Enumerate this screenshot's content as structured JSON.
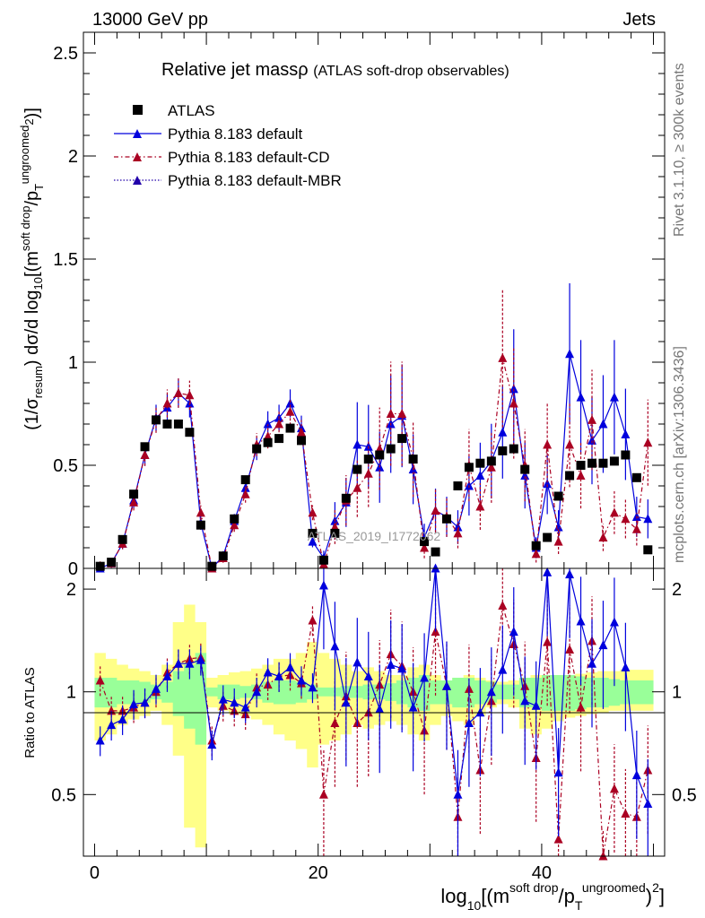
{
  "header": {
    "left": "13000 GeV pp",
    "right": "Jets"
  },
  "side": {
    "rivet_prefix": "Rivet 3.1.10, ",
    "rivet_suffix": "≥ 300k events",
    "mcplots": "mcplots.cern.ch [arXiv:1306.3436]"
  },
  "watermark": "ATLAS_2019_I1772062",
  "legend": {
    "title_main": "Relative jet massρ",
    "title_sub": "(ATLAS soft-drop observables)",
    "entries": [
      {
        "label": "ATLAS",
        "color": "#000000"
      },
      {
        "label": "Pythia 8.183 default",
        "color": "#0000dd"
      },
      {
        "label": "Pythia 8.183 default-CD",
        "color": "#aa0022"
      },
      {
        "label": "Pythia 8.183 default-MBR",
        "color": "#2200aa"
      }
    ]
  },
  "axes": {
    "ylabel_top": "(1/σresum) dσ/d log10[(msoft drop/pTungroomed)2]",
    "ylabel_bottom": "Ratio to ATLAS",
    "xlabel": "log10[(msoft drop/pTungroomed)2]"
  },
  "chart_data": {
    "type": "scatter",
    "xlim": [
      -1,
      51
    ],
    "ylim_top": [
      0,
      2.6
    ],
    "ylim_ratio": [
      0.33,
      2.3
    ],
    "x_ticks": [
      0,
      20,
      40
    ],
    "y_ticks_top": [
      "0",
      "0.5",
      "1",
      "1.5",
      "2",
      "2.5"
    ],
    "y_ticks_top_values": [
      0,
      0.5,
      1,
      1.5,
      2,
      2.5
    ],
    "y_ticks_ratio": [
      "0.5",
      "1",
      "2"
    ],
    "y_ticks_ratio_values": [
      0.5,
      1,
      2
    ],
    "x": [
      0.5,
      1.5,
      2.5,
      3.5,
      4.5,
      5.5,
      6.5,
      7.5,
      8.5,
      9.5,
      10.5,
      11.5,
      12.5,
      13.5,
      14.5,
      15.5,
      16.5,
      17.5,
      18.5,
      19.5,
      20.5,
      21.5,
      22.5,
      23.5,
      24.5,
      25.5,
      26.5,
      27.5,
      28.5,
      29.5,
      30.5,
      31.5,
      32.5,
      33.5,
      34.5,
      35.5,
      36.5,
      37.5,
      38.5,
      39.5,
      40.5,
      41.5,
      42.5,
      43.5,
      44.5,
      45.5,
      46.5,
      47.5,
      48.5,
      49.5
    ],
    "series": [
      {
        "name": "ATLAS",
        "values": [
          0.01,
          0.03,
          0.14,
          0.36,
          0.59,
          0.72,
          0.7,
          0.7,
          0.66,
          0.21,
          0.01,
          0.06,
          0.24,
          0.43,
          0.58,
          0.61,
          0.63,
          0.68,
          0.62,
          0.17,
          0.04,
          0.17,
          0.34,
          0.48,
          0.53,
          0.55,
          0.58,
          0.63,
          0.53,
          0.13,
          0.08,
          0.24,
          0.4,
          0.49,
          0.51,
          0.52,
          0.57,
          0.58,
          0.48,
          0.11,
          0.15,
          0.35,
          0.45,
          0.5,
          0.51,
          0.51,
          0.52,
          0.55,
          0.44,
          0.09
        ]
      },
      {
        "name": "Pythia 8.183 default",
        "values": [
          0.0,
          0.025,
          0.12,
          0.33,
          0.55,
          0.73,
          0.78,
          0.85,
          0.8,
          0.22,
          0.0,
          0.06,
          0.23,
          0.39,
          0.58,
          0.7,
          0.73,
          0.8,
          0.68,
          0.13,
          0.05,
          0.23,
          0.32,
          0.6,
          0.59,
          0.49,
          0.7,
          0.74,
          0.48,
          0.15,
          0.28,
          0.25,
          0.2,
          0.4,
          0.45,
          0.52,
          0.66,
          0.87,
          0.45,
          0.1,
          0.41,
          0.2,
          1.04,
          0.83,
          0.62,
          0.7,
          0.83,
          0.65,
          0.25,
          0.24
        ]
      },
      {
        "name": "Pythia 8.183 default-CD",
        "values": [
          0.012,
          0.025,
          0.12,
          0.32,
          0.55,
          0.72,
          0.8,
          0.85,
          0.84,
          0.27,
          0.0,
          0.05,
          0.21,
          0.36,
          0.6,
          0.64,
          0.7,
          0.76,
          0.66,
          0.27,
          0.02,
          0.2,
          0.33,
          0.39,
          0.46,
          0.58,
          0.75,
          0.75,
          0.53,
          0.1,
          0.28,
          0.25,
          0.17,
          0.5,
          0.3,
          0.49,
          1.02,
          0.8,
          0.5,
          0.07,
          0.6,
          0.13,
          0.6,
          0.45,
          0.72,
          0.15,
          0.27,
          0.24,
          0.19,
          0.61
        ]
      }
    ],
    "ratio": {
      "default": [
        0.72,
        0.8,
        0.83,
        0.92,
        0.93,
        1.02,
        1.11,
        1.21,
        1.21,
        1.24,
        0.7,
        0.95,
        0.93,
        0.9,
        1.0,
        1.14,
        1.11,
        1.18,
        1.08,
        1.03,
        2.05,
        1.36,
        0.93,
        1.22,
        1.11,
        0.89,
        1.2,
        1.17,
        0.9,
        1.1,
        2.31,
        1.04,
        0.5,
        0.81,
        0.87,
        1.0,
        1.16,
        1.5,
        0.94,
        0.91,
        2.24,
        0.58,
        2.21,
        1.61,
        1.21,
        1.37,
        1.6,
        1.18,
        0.57,
        0.47
      ],
      "default_cd": [
        1.08,
        0.88,
        0.88,
        0.9,
        0.93,
        1.0,
        1.14,
        1.21,
        1.25,
        1.26,
        0.72,
        0.91,
        0.88,
        0.86,
        1.03,
        1.05,
        1.11,
        1.12,
        1.06,
        1.62,
        0.5,
        0.81,
        0.97,
        0.81,
        0.87,
        1.05,
        1.29,
        1.19,
        1.0,
        0.77,
        1.5,
        1.04,
        0.43,
        1.02,
        0.59,
        0.94,
        1.79,
        1.38,
        1.04,
        0.64,
        1.4,
        0.37,
        1.33,
        0.9,
        1.41,
        0.29,
        0.52,
        0.44,
        0.43,
        0.59
      ]
    },
    "bands": {
      "inner_lo": [
        0.9,
        0.9,
        0.92,
        0.92,
        0.93,
        0.95,
        0.93,
        0.85,
        0.78,
        0.7,
        0.97,
        0.95,
        0.95,
        0.96,
        0.95,
        0.93,
        0.92,
        0.92,
        0.93,
        0.95,
        0.97,
        0.97,
        0.96,
        0.96,
        0.95,
        0.95,
        0.94,
        0.92,
        0.9,
        0.88,
        0.92,
        0.92,
        0.9,
        0.9,
        0.92,
        0.93,
        0.95,
        0.95,
        0.9,
        0.9,
        0.88,
        0.88,
        0.88,
        0.89,
        0.9,
        0.9,
        0.91,
        0.92,
        0.92,
        0.92
      ],
      "inner_hi": [
        1.1,
        1.1,
        1.08,
        1.08,
        1.07,
        1.05,
        1.07,
        1.15,
        1.2,
        1.3,
        1.03,
        1.05,
        1.05,
        1.04,
        1.05,
        1.07,
        1.08,
        1.08,
        1.07,
        1.05,
        1.03,
        1.03,
        1.04,
        1.04,
        1.05,
        1.05,
        1.06,
        1.08,
        1.1,
        1.12,
        1.08,
        1.08,
        1.1,
        1.1,
        1.08,
        1.07,
        1.05,
        1.05,
        1.1,
        1.1,
        1.12,
        1.12,
        1.12,
        1.11,
        1.1,
        1.1,
        1.09,
        1.08,
        1.08,
        1.08
      ],
      "outer_lo": [
        0.72,
        0.75,
        0.8,
        0.83,
        0.85,
        0.88,
        0.8,
        0.65,
        0.4,
        0.35,
        0.9,
        0.88,
        0.86,
        0.85,
        0.83,
        0.8,
        0.75,
        0.72,
        0.68,
        0.6,
        0.7,
        0.72,
        0.75,
        0.8,
        0.78,
        0.8,
        0.82,
        0.8,
        0.75,
        0.72,
        0.8,
        0.85,
        0.82,
        0.8,
        0.85,
        0.9,
        0.92,
        0.9,
        0.78,
        0.75,
        0.78,
        0.82,
        0.84,
        0.85,
        0.86,
        0.87,
        0.88,
        0.88,
        0.88,
        0.88
      ],
      "outer_hi": [
        1.3,
        1.25,
        1.2,
        1.17,
        1.15,
        1.12,
        1.2,
        1.6,
        1.8,
        1.6,
        1.1,
        1.12,
        1.14,
        1.15,
        1.17,
        1.2,
        1.25,
        1.25,
        1.3,
        1.4,
        1.3,
        1.25,
        1.2,
        1.15,
        1.18,
        1.15,
        1.12,
        1.12,
        1.18,
        1.2,
        1.12,
        1.08,
        1.1,
        1.12,
        1.1,
        1.08,
        1.07,
        1.08,
        1.1,
        1.12,
        1.12,
        1.1,
        1.12,
        1.13,
        1.14,
        1.15,
        1.15,
        1.16,
        1.16,
        1.16
      ]
    }
  }
}
